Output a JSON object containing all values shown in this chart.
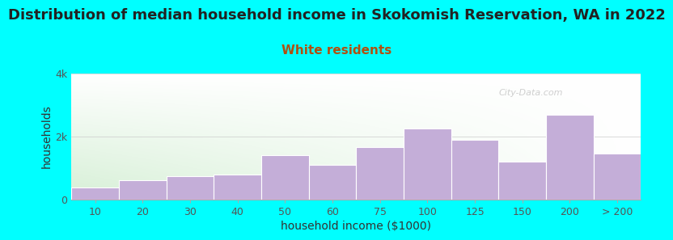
{
  "title": "Distribution of median household income in Skokomish Reservation, WA in 2022",
  "subtitle": "White residents",
  "xlabel": "household income ($1000)",
  "ylabel": "households",
  "background_color": "#00FFFF",
  "plot_bg_left": "#d6f0d6",
  "plot_bg_right": "#f0f0f0",
  "bar_color": "#c4aed8",
  "categories": [
    "10",
    "20",
    "30",
    "40",
    "50",
    "60",
    "75",
    "100",
    "125",
    "150",
    "200",
    "> 200"
  ],
  "values": [
    380,
    600,
    750,
    780,
    1400,
    1100,
    1650,
    2250,
    1900,
    1200,
    2700,
    1450
  ],
  "ylim": [
    0,
    4000
  ],
  "ytick_labels": [
    "0",
    "2k",
    "4k"
  ],
  "ytick_values": [
    0,
    2000,
    4000
  ],
  "title_fontsize": 13,
  "subtitle_fontsize": 11,
  "subtitle_color": "#b05010",
  "axis_label_fontsize": 10,
  "tick_fontsize": 9,
  "watermark": "City-Data.com"
}
